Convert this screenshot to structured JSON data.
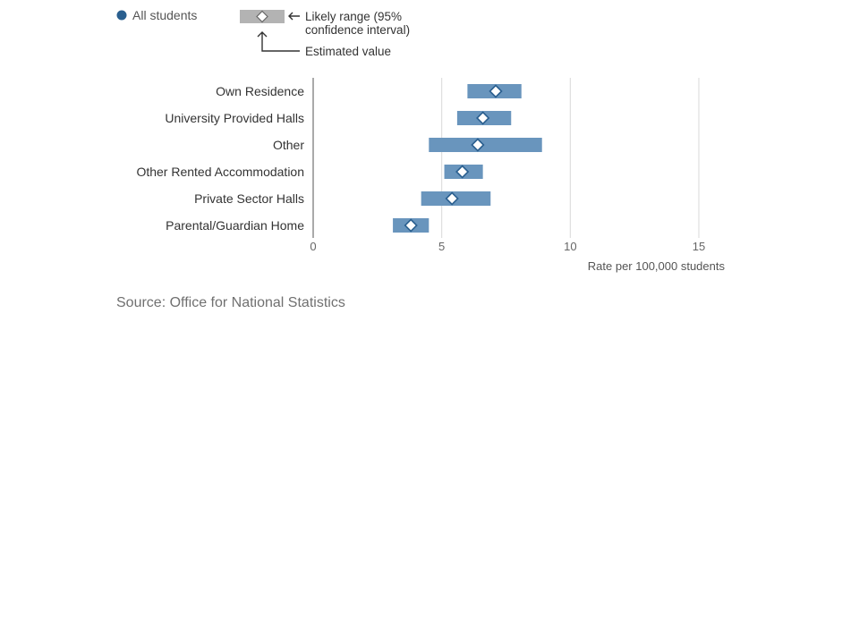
{
  "legend": {
    "series_label": "All students",
    "range_label_line1": "Likely range (95%",
    "range_label_line2": "confidence interval)",
    "estimate_label": "Estimated value"
  },
  "source": "Source: Office for National Statistics",
  "colors": {
    "series": "#2a5f8f",
    "range_bar": "#6995bd",
    "marker_fill": "#ffffff",
    "marker_stroke": "#2a5f8f",
    "grid": "#d9d9d9",
    "axis": "#aaaaaa",
    "legend_bar": "#b3b3b3"
  },
  "chart_data": {
    "type": "bar",
    "orientation": "horizontal",
    "categories": [
      "Own Residence",
      "University Provided Halls",
      "Other",
      "Other Rented Accommodation",
      "Private Sector Halls",
      "Parental/Guardian Home"
    ],
    "series": [
      {
        "name": "All students",
        "estimates": [
          7.1,
          6.6,
          6.4,
          5.8,
          5.4,
          3.8
        ],
        "lower": [
          6.0,
          5.6,
          4.5,
          5.1,
          4.2,
          3.1
        ],
        "upper": [
          8.1,
          7.7,
          8.9,
          6.6,
          6.9,
          4.5
        ]
      }
    ],
    "xlim": [
      0,
      15
    ],
    "xticks": [
      "0",
      "5",
      "10",
      "15"
    ],
    "xlabel": "Rate per 100,000 students",
    "ylabel": "",
    "title": "",
    "grid": true,
    "legend_position": "top-left"
  }
}
